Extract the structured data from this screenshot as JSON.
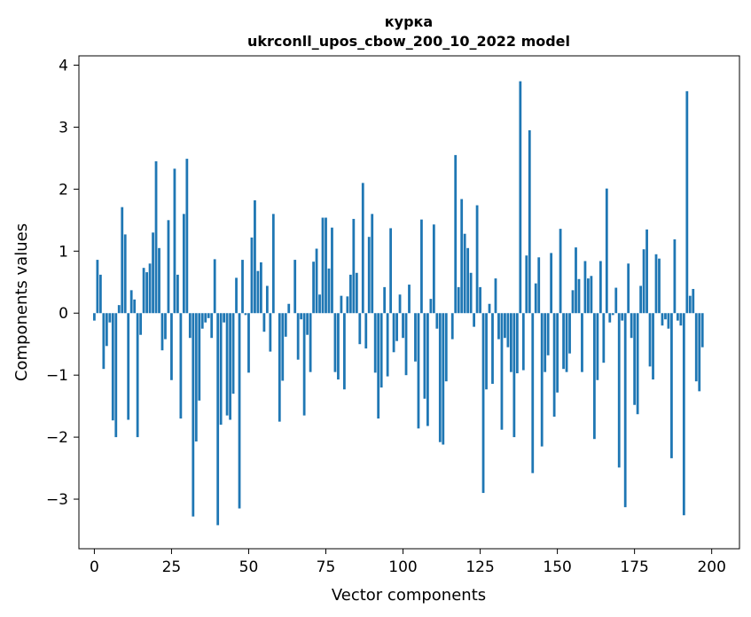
{
  "chart_data": {
    "type": "bar",
    "title": "курка",
    "subtitle": "ukrconll_upos_cbow_200_10_2022 model",
    "xlabel": "Vector components",
    "ylabel": "Components values",
    "xlim": [
      -5,
      209
    ],
    "ylim": [
      -3.8,
      4.15
    ],
    "xticks": [
      0,
      25,
      50,
      75,
      100,
      125,
      150,
      175,
      200
    ],
    "yticks": [
      -3,
      -2,
      -1,
      0,
      1,
      2,
      3,
      4
    ],
    "grid": false,
    "bar_color": "#1f77b4",
    "values": [
      -0.12,
      0.86,
      0.62,
      -0.9,
      -0.53,
      -0.15,
      -1.73,
      -2.0,
      0.13,
      1.71,
      1.27,
      -1.72,
      0.37,
      0.22,
      -2.0,
      -0.35,
      0.73,
      0.66,
      0.8,
      1.3,
      2.45,
      1.05,
      -0.6,
      -0.42,
      1.5,
      -1.08,
      2.33,
      0.62,
      -1.7,
      1.6,
      2.49,
      -0.4,
      -3.28,
      -2.07,
      -1.41,
      -0.25,
      -0.15,
      -0.08,
      -0.4,
      0.87,
      -3.42,
      -1.8,
      -0.15,
      -1.65,
      -1.72,
      -1.3,
      0.57,
      -3.15,
      0.86,
      -0.03,
      -0.96,
      1.22,
      1.82,
      0.68,
      0.82,
      -0.3,
      0.44,
      -0.62,
      1.6,
      0.0,
      -1.75,
      -1.09,
      -0.38,
      0.15,
      0.0,
      0.86,
      -0.75,
      -0.1,
      -1.65,
      -0.35,
      -0.95,
      0.83,
      1.04,
      0.3,
      1.54,
      1.54,
      0.72,
      1.38,
      -0.95,
      -1.07,
      0.28,
      -1.23,
      0.27,
      0.62,
      1.52,
      0.65,
      -0.5,
      2.1,
      -0.57,
      1.23,
      1.6,
      -0.96,
      -1.7,
      -1.2,
      0.42,
      -1.02,
      1.37,
      -0.63,
      -0.45,
      0.3,
      -0.4,
      -1.0,
      0.46,
      0.0,
      -0.78,
      -1.86,
      1.51,
      -1.38,
      -1.82,
      0.23,
      1.43,
      -0.25,
      -2.08,
      -2.12,
      -1.1,
      0.0,
      -0.42,
      2.55,
      0.42,
      1.84,
      1.28,
      1.05,
      0.65,
      -0.22,
      1.74,
      0.42,
      -2.9,
      -1.23,
      0.15,
      -1.14,
      0.56,
      -0.42,
      -1.88,
      -0.4,
      -0.55,
      -0.95,
      -2.0,
      -0.97,
      3.74,
      -0.92,
      0.93,
      2.95,
      -2.58,
      0.48,
      0.9,
      -2.15,
      -0.95,
      -0.68,
      0.97,
      -1.67,
      -1.28,
      1.36,
      -0.9,
      -0.95,
      -0.65,
      0.37,
      1.06,
      0.55,
      -0.95,
      0.84,
      0.56,
      0.6,
      -2.03,
      -1.08,
      0.84,
      -0.8,
      2.01,
      -0.15,
      -0.03,
      0.41,
      -2.49,
      -0.12,
      -3.13,
      0.8,
      -0.4,
      -1.48,
      -1.63,
      0.44,
      1.03,
      1.35,
      -0.86,
      -1.07,
      0.95,
      0.88,
      -0.2,
      -0.1,
      -0.25,
      -2.34,
      1.19,
      -0.12,
      -0.2,
      -3.26,
      3.58,
      0.28,
      0.39,
      -1.1,
      -1.26,
      -0.55
    ]
  }
}
